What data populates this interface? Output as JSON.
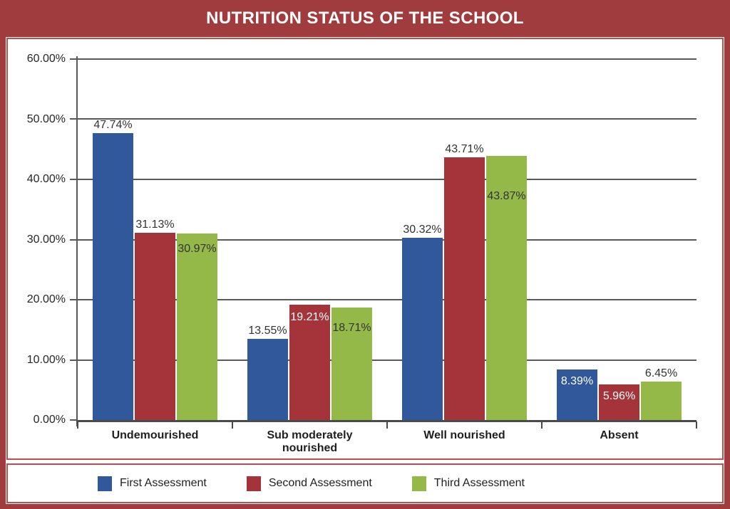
{
  "header": {
    "title": "NUTRITION STATUS OF THE SCHOOL"
  },
  "colors": {
    "frame": "#a03c3e",
    "panel_border": "#c0504d",
    "panel_bg": "#ffffff",
    "gridline": "#595959",
    "axis": "#4a4a4a",
    "tick_text": "#262626",
    "label_dark": "#333333",
    "label_light": "#ffffff",
    "series_blue": "#32589c",
    "series_red": "#a4333a",
    "series_green": "#95b949"
  },
  "chart_data": {
    "type": "bar",
    "title": "NUTRITION STATUS OF THE SCHOOL",
    "categories": [
      "Undemourished",
      "Sub moderately nourished",
      "Well nourished",
      "Absent"
    ],
    "series": [
      {
        "name": "First Assessment",
        "color": "#32589c",
        "values": [
          47.74,
          13.55,
          30.32,
          8.39
        ],
        "labels": [
          "47.74%",
          "13.55%",
          "30.32%",
          "8.39%"
        ],
        "label_inside": [
          false,
          false,
          false,
          true
        ],
        "label_inside_dark": false,
        "label_dy": [
          0,
          0,
          0,
          8
        ]
      },
      {
        "name": "Second Assessment",
        "color": "#a4333a",
        "values": [
          31.13,
          19.21,
          43.71,
          5.96
        ],
        "labels": [
          "31.13%",
          "19.21%",
          "43.71%",
          "5.96%"
        ],
        "label_inside": [
          false,
          true,
          false,
          true
        ],
        "label_inside_dark": false,
        "label_dy": [
          0,
          9,
          0,
          8
        ]
      },
      {
        "name": "Third Assessment",
        "color": "#95b949",
        "values": [
          30.97,
          18.71,
          43.87,
          6.45
        ],
        "labels": [
          "30.97%",
          "18.71%",
          "43.87%",
          "6.45%"
        ],
        "label_inside": [
          true,
          true,
          true,
          false
        ],
        "label_inside_dark": true,
        "label_dy": [
          13,
          20,
          48,
          0
        ]
      }
    ],
    "ylim": [
      0,
      60
    ],
    "ytick_step": 10,
    "ytick_labels": [
      "0.00%",
      "10.00%",
      "20.00%",
      "30.00%",
      "40.00%",
      "50.00%",
      "60.00%"
    ],
    "grid": true,
    "legend_position": "bottom"
  }
}
